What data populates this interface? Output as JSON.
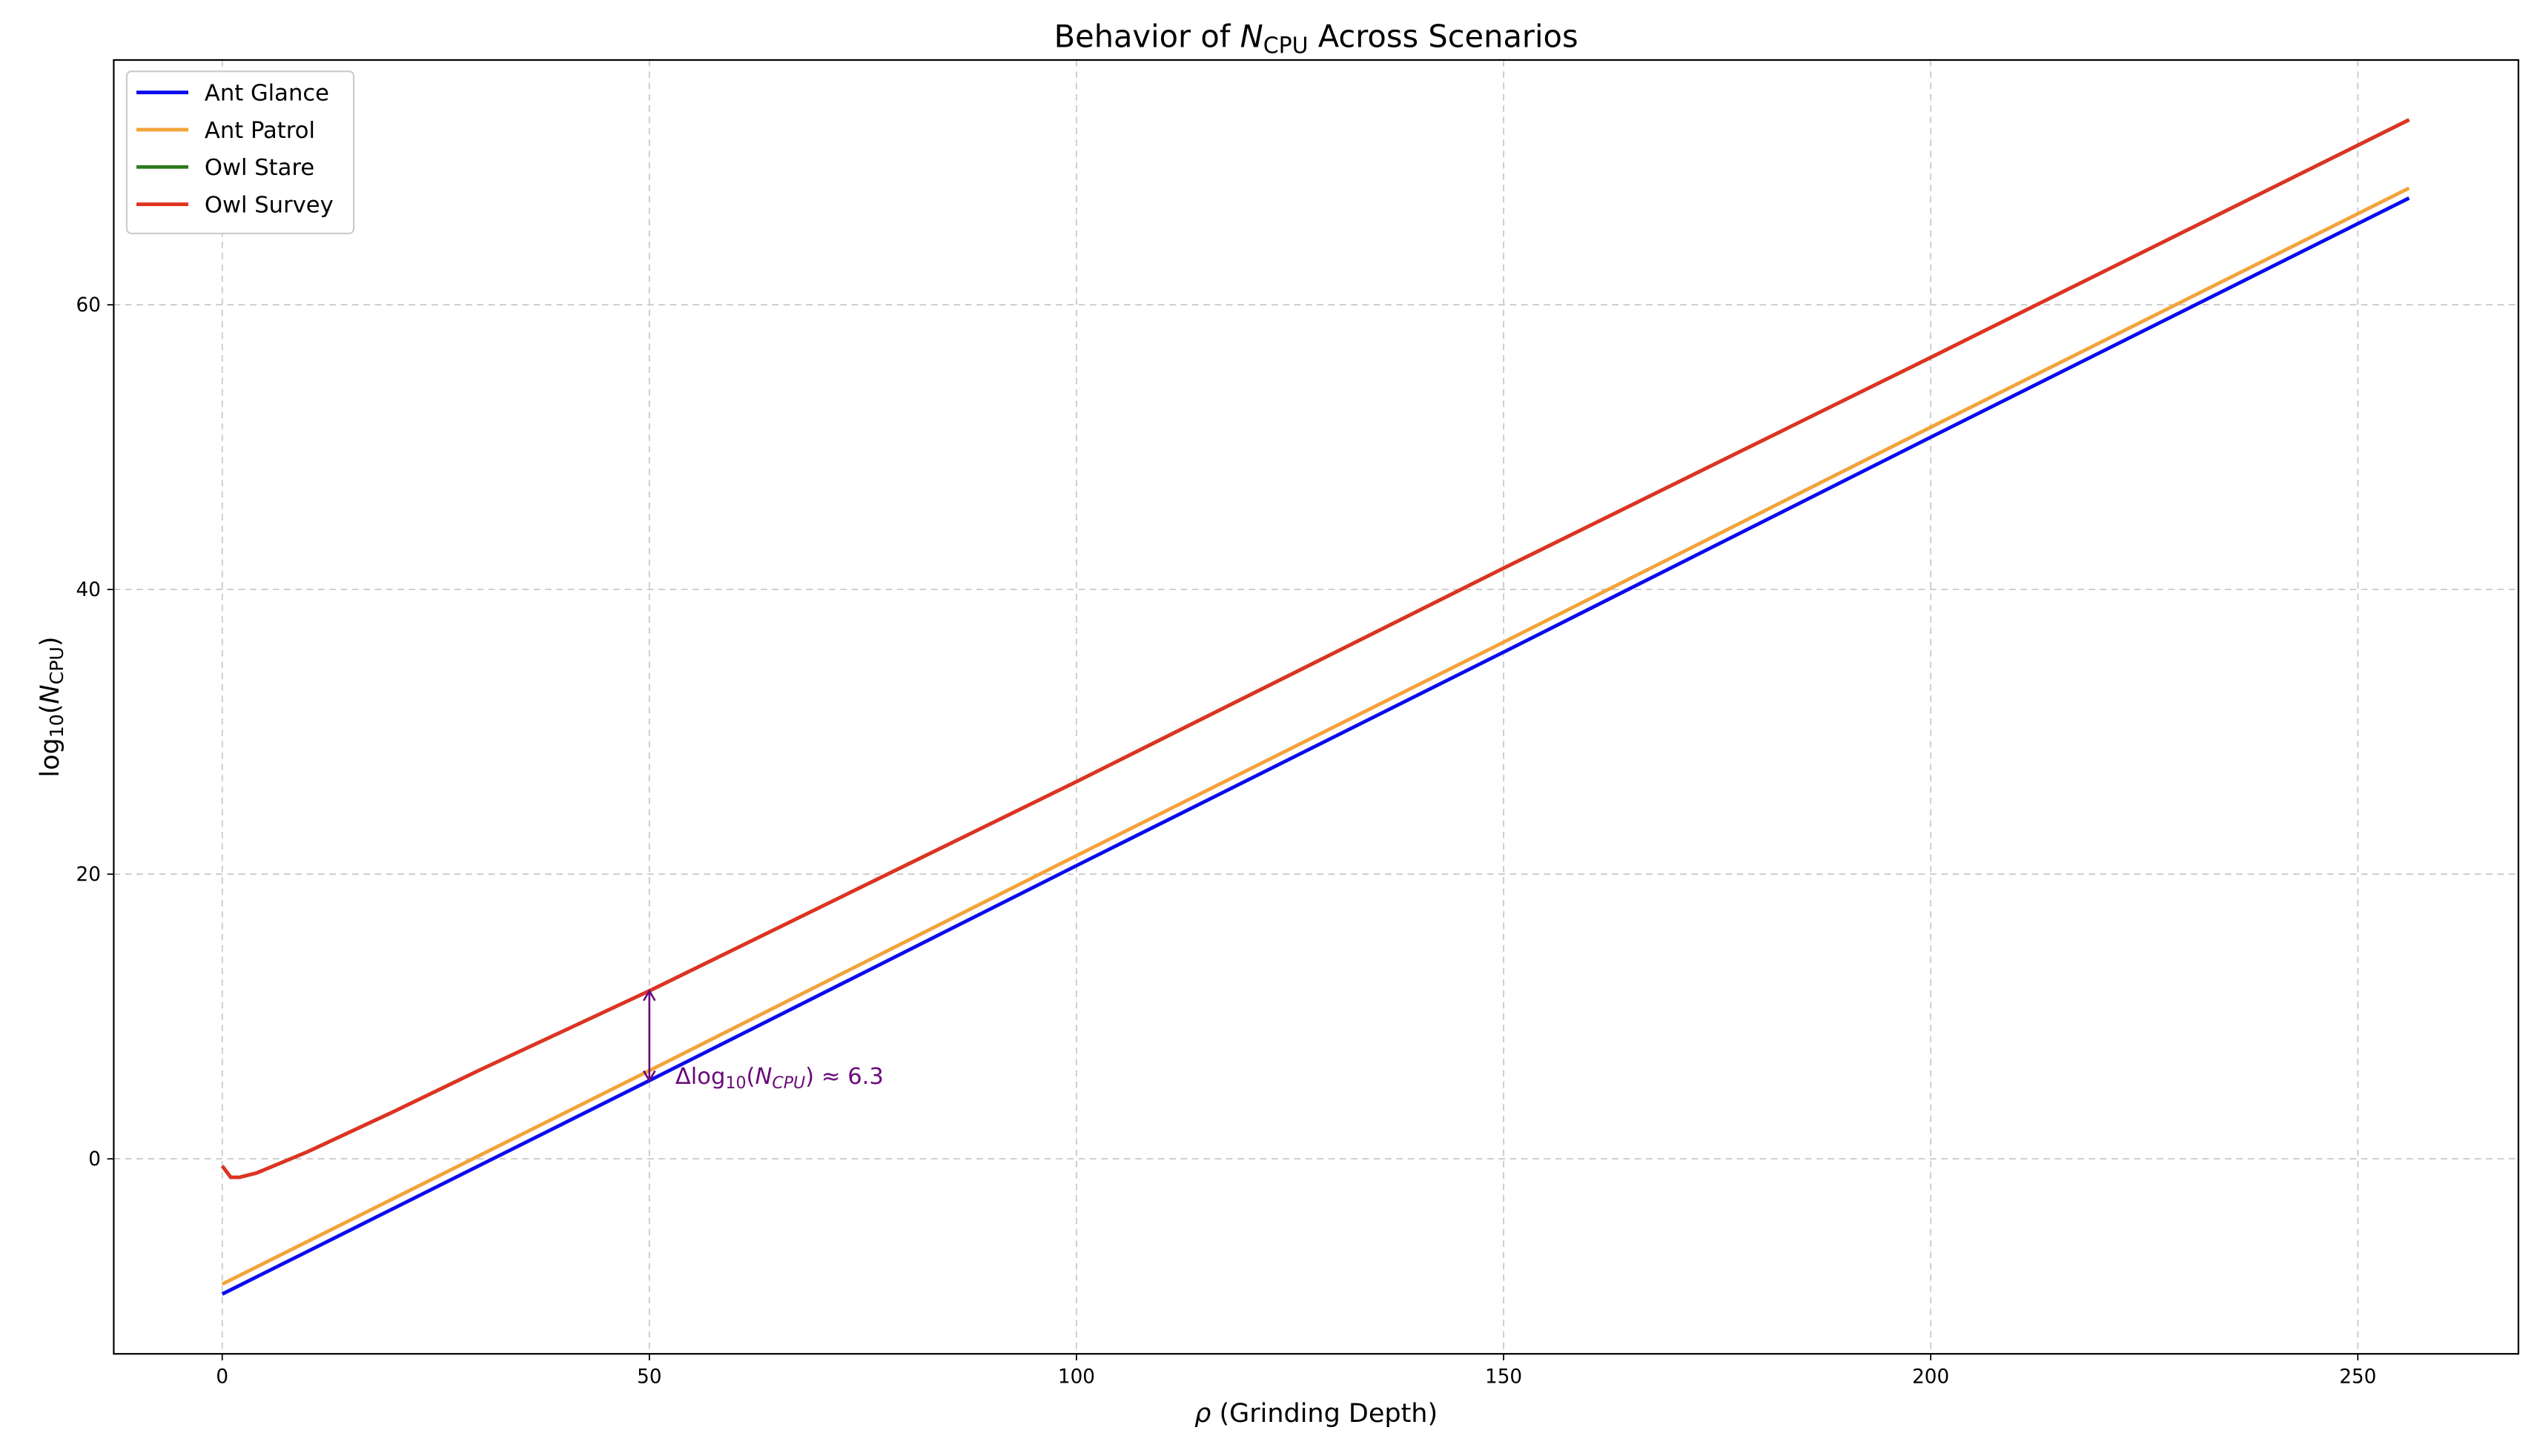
{
  "chart_data": {
    "type": "line",
    "title": [
      {
        "text": "Behavior of "
      },
      {
        "text": "N",
        "style": "italic"
      },
      {
        "text": "CPU",
        "style": "sub"
      },
      {
        "text": " Across Scenarios"
      }
    ],
    "xlabel": [
      {
        "text": "ρ",
        "style": "italic"
      },
      {
        "text": " (Grinding Depth)"
      }
    ],
    "ylabel": [
      {
        "text": "log"
      },
      {
        "text": "10",
        "style": "sub"
      },
      {
        "text": "("
      },
      {
        "text": "N",
        "style": "italic"
      },
      {
        "text": "CPU",
        "style": "sub"
      },
      {
        "text": ")"
      }
    ],
    "x": [
      0,
      1,
      2,
      4,
      6,
      8,
      10,
      15,
      20,
      30,
      40,
      50,
      100,
      150,
      200,
      256
    ],
    "series": [
      {
        "name": "Ant Glance",
        "color": "#0a0af0",
        "values": [
          -9.5,
          -9.2,
          -8.9,
          -8.3,
          -7.7,
          -7.1,
          -6.5,
          -5.0,
          -3.5,
          -0.5,
          2.5,
          5.5,
          20.6,
          35.6,
          50.7,
          67.5
        ]
      },
      {
        "name": "Ant Patrol",
        "color": "#f2a33a",
        "values": [
          -8.8,
          -8.5,
          -8.2,
          -7.6,
          -7.0,
          -6.4,
          -5.8,
          -4.3,
          -2.8,
          0.2,
          3.2,
          6.2,
          21.3,
          36.3,
          51.4,
          68.2
        ]
      },
      {
        "name": "Owl Stare",
        "color": "#2a7a1a",
        "values": [
          -0.5,
          -1.3,
          -1.3,
          -1.0,
          -0.5,
          0.0,
          0.5,
          1.9,
          3.3,
          6.2,
          9.0,
          11.8,
          26.5,
          41.5,
          56.3,
          73.0
        ]
      },
      {
        "name": "Owl Survey",
        "color": "#e03222",
        "values": [
          -0.5,
          -1.3,
          -1.3,
          -1.0,
          -0.5,
          0.0,
          0.5,
          1.9,
          3.3,
          6.2,
          9.0,
          11.8,
          26.5,
          41.5,
          56.3,
          73.0
        ]
      }
    ],
    "annotation": {
      "x": 50,
      "y_from": 5.5,
      "y_to": 11.8,
      "color": "#6a0a7a",
      "text": [
        {
          "text": "Δlog"
        },
        {
          "text": "10",
          "style": "sub"
        },
        {
          "text": "("
        },
        {
          "text": "N",
          "style": "italic"
        },
        {
          "text": "CPU",
          "style": "sub-italic"
        },
        {
          "text": ") ≈ 6.3"
        }
      ]
    },
    "xlim": [
      -12.7,
      268.8
    ],
    "ylim": [
      -13.7,
      77.2
    ],
    "xticks": [
      0,
      50,
      100,
      150,
      200,
      250
    ],
    "yticks": [
      0,
      20,
      40,
      60
    ],
    "grid": true,
    "legend": "upper-left"
  }
}
